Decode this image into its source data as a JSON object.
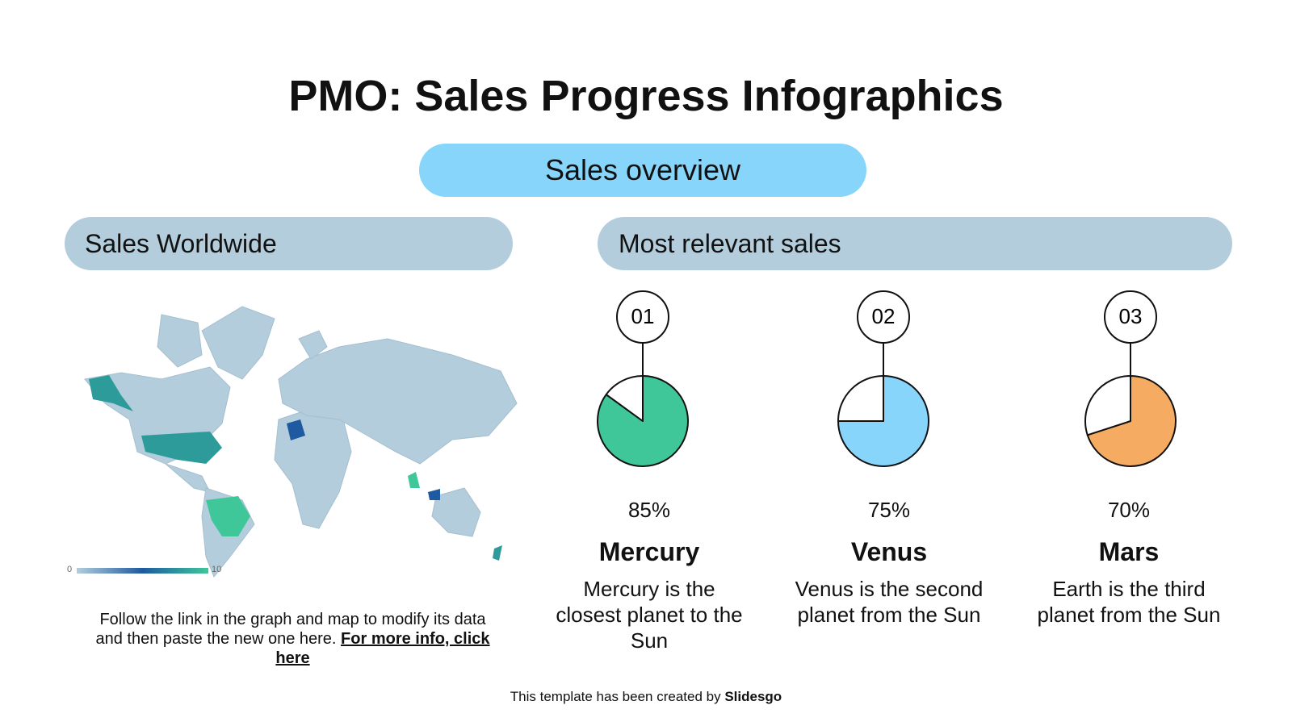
{
  "title": "PMO: Sales Progress Infographics",
  "overview_label": "Sales overview",
  "left_panel": {
    "heading": "Sales Worldwide",
    "map_legend": {
      "min": 0,
      "max": 10
    },
    "note": "Follow the link in the graph and map to modify its data and then paste the new one here.",
    "link": "For more info, click here"
  },
  "right_panel": {
    "heading": "Most relevant sales"
  },
  "chart_data": [
    {
      "type": "pie",
      "number": "01",
      "name": "Mercury",
      "description": "Mercury is the closest planet to the Sun",
      "values": [
        85,
        15
      ],
      "value_labels": [
        "85%",
        null
      ],
      "colors": [
        "#3fc79a",
        "#ffffff"
      ]
    },
    {
      "type": "pie",
      "number": "02",
      "name": "Venus",
      "description": "Venus is the second planet from the Sun",
      "values": [
        75,
        25
      ],
      "value_labels": [
        "75%",
        null
      ],
      "colors": [
        "#87d5fb",
        "#ffffff"
      ]
    },
    {
      "type": "pie",
      "number": "03",
      "name": "Mars",
      "description": "Earth is the third planet from the Sun",
      "values": [
        70,
        30
      ],
      "value_labels": [
        "70%",
        null
      ],
      "colors": [
        "#f5ac62",
        "#ffffff"
      ]
    }
  ],
  "footer": {
    "text": "This template has been created by",
    "brand": "Slidesgo"
  }
}
